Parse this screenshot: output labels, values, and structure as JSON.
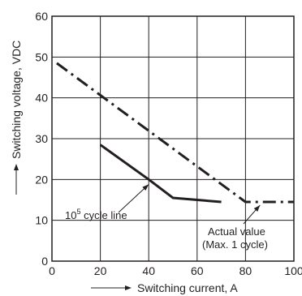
{
  "chart_data": {
    "type": "line",
    "xlabel": "Switching current, A",
    "ylabel": "Switching voltage, VDC",
    "xlim": [
      0,
      100
    ],
    "ylim": [
      0,
      60
    ],
    "x_ticks": [
      0,
      20,
      40,
      60,
      80,
      100
    ],
    "y_ticks": [
      0,
      10,
      20,
      30,
      40,
      50,
      60
    ],
    "grid": true,
    "series": [
      {
        "name": "10⁵ cycle line",
        "style": "solid",
        "points": [
          [
            20,
            28.5
          ],
          [
            40,
            20
          ],
          [
            50,
            15.5
          ],
          [
            70,
            14.5
          ]
        ]
      },
      {
        "name": "Actual value (Max. 1 cycle)",
        "style": "dash-dot",
        "points": [
          [
            2,
            48.5
          ],
          [
            80,
            14.5
          ],
          [
            100,
            14.5
          ]
        ]
      }
    ],
    "annotations": [
      {
        "lines": [
          "10",
          "5",
          " cycle line"
        ],
        "target": [
          40,
          20
        ]
      },
      {
        "lines": [
          "Actual value",
          "(Max. 1 cycle)"
        ],
        "target": [
          86,
          14.5
        ]
      }
    ]
  }
}
